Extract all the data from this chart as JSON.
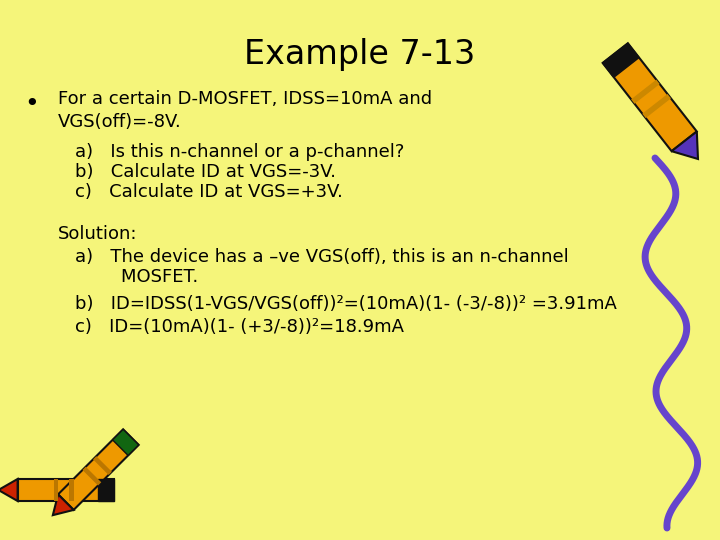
{
  "title": "Example 7-13",
  "background_color": "#FAFА78",
  "bg": "#F5F580",
  "title_fontsize": 24,
  "body_fontsize": 13,
  "text_color": "#000000",
  "bullet_line1": "For a certain D-MOSFET, IDSS=10mA and",
  "bullet_line2": "VGS(off)=-8V.",
  "sub_a": "a)   Is this n-channel or a p-channel?",
  "sub_b": "b)   Calculate ID at VGS=-3V.",
  "sub_c": "c)   Calculate ID at VGS=+3V.",
  "solution_label": "Solution:",
  "sol_a1": "a)   The device has a –ve VGS(off), this is an n-channel",
  "sol_a2": "        MOSFET.",
  "sol_b": "b)   ID=IDSS(1-VGS/VGS(off))²=(10mA)(1- (-3/-8))² =3.91mA",
  "sol_c": "c)   ID=(10mA)(1- (+3/-8))²=18.9mA",
  "purple_color": "#6644CC",
  "orange_color": "#EE9900",
  "dark_color": "#111111",
  "gold_color": "#FFD700",
  "green_color": "#228B22",
  "red_color": "#CC0000",
  "purple_tip": "#5533BB"
}
